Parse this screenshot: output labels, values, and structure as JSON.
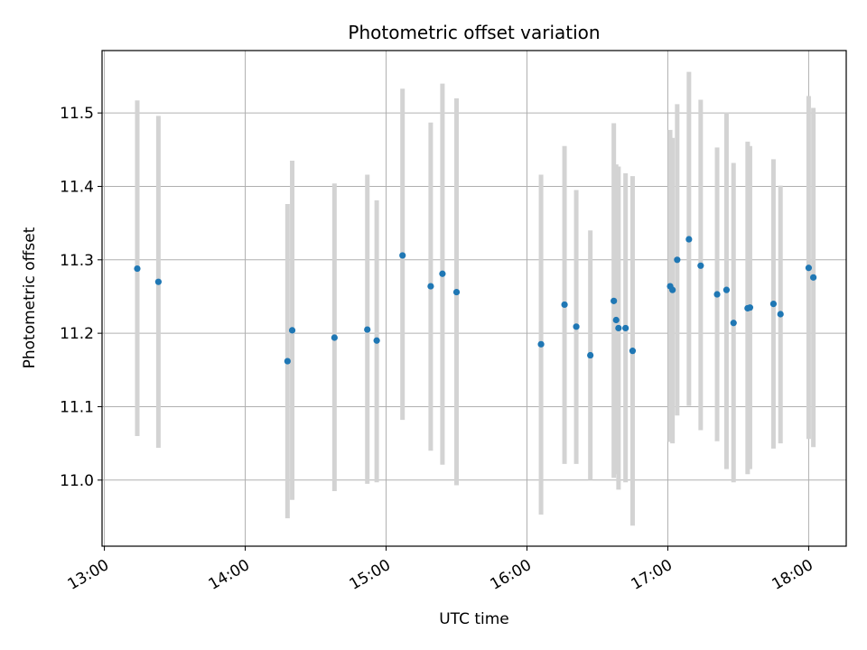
{
  "chart_data": {
    "type": "scatter",
    "title": "Photometric offset variation",
    "xlabel": "UTC time",
    "ylabel": "Photometric offset",
    "x_ticks": [
      "13:00",
      "14:00",
      "15:00",
      "16:00",
      "17:00",
      "18:00"
    ],
    "y_ticks": [
      "11.0",
      "11.1",
      "11.2",
      "11.3",
      "11.4",
      "11.5"
    ],
    "xlim": [
      "12:59",
      "18:16"
    ],
    "ylim": [
      10.91,
      11.585
    ],
    "grid": true,
    "colors": {
      "point": "#1f77b4",
      "errorbar": "#d3d3d3",
      "grid": "#b0b0b0"
    },
    "points": [
      {
        "x": "13:14",
        "y": 11.288,
        "ylow": 11.06,
        "yhigh": 11.517
      },
      {
        "x": "13:23",
        "y": 11.27,
        "ylow": 11.044,
        "yhigh": 11.496
      },
      {
        "x": "14:18",
        "y": 11.162,
        "ylow": 10.948,
        "yhigh": 11.376
      },
      {
        "x": "14:20",
        "y": 11.204,
        "ylow": 10.973,
        "yhigh": 11.435
      },
      {
        "x": "14:38",
        "y": 11.194,
        "ylow": 10.985,
        "yhigh": 11.404
      },
      {
        "x": "14:52",
        "y": 11.205,
        "ylow": 10.995,
        "yhigh": 11.416
      },
      {
        "x": "14:56",
        "y": 11.19,
        "ylow": 10.997,
        "yhigh": 11.381
      },
      {
        "x": "15:07",
        "y": 11.306,
        "ylow": 11.082,
        "yhigh": 11.533
      },
      {
        "x": "15:19",
        "y": 11.264,
        "ylow": 11.04,
        "yhigh": 11.487
      },
      {
        "x": "15:24",
        "y": 11.281,
        "ylow": 11.021,
        "yhigh": 11.54
      },
      {
        "x": "15:30",
        "y": 11.256,
        "ylow": 10.993,
        "yhigh": 11.52
      },
      {
        "x": "16:06",
        "y": 11.185,
        "ylow": 10.953,
        "yhigh": 11.416
      },
      {
        "x": "16:16",
        "y": 11.239,
        "ylow": 11.022,
        "yhigh": 11.455
      },
      {
        "x": "16:21",
        "y": 11.209,
        "ylow": 11.022,
        "yhigh": 11.395
      },
      {
        "x": "16:27",
        "y": 11.17,
        "ylow": 11.0,
        "yhigh": 11.34
      },
      {
        "x": "16:37",
        "y": 11.244,
        "ylow": 11.003,
        "yhigh": 11.486
      },
      {
        "x": "16:38",
        "y": 11.218,
        "ylow": 11.008,
        "yhigh": 11.43
      },
      {
        "x": "16:39",
        "y": 11.207,
        "ylow": 10.987,
        "yhigh": 11.427
      },
      {
        "x": "16:42",
        "y": 11.207,
        "ylow": 10.997,
        "yhigh": 11.418
      },
      {
        "x": "16:45",
        "y": 11.176,
        "ylow": 10.938,
        "yhigh": 11.414
      },
      {
        "x": "17:01",
        "y": 11.264,
        "ylow": 11.052,
        "yhigh": 11.477
      },
      {
        "x": "17:02",
        "y": 11.259,
        "ylow": 11.05,
        "yhigh": 11.466
      },
      {
        "x": "17:04",
        "y": 11.3,
        "ylow": 11.088,
        "yhigh": 11.512
      },
      {
        "x": "17:09",
        "y": 11.328,
        "ylow": 11.101,
        "yhigh": 11.556
      },
      {
        "x": "17:14",
        "y": 11.292,
        "ylow": 11.068,
        "yhigh": 11.518
      },
      {
        "x": "17:21",
        "y": 11.253,
        "ylow": 11.053,
        "yhigh": 11.453
      },
      {
        "x": "17:25",
        "y": 11.259,
        "ylow": 11.015,
        "yhigh": 11.501
      },
      {
        "x": "17:28",
        "y": 11.214,
        "ylow": 10.997,
        "yhigh": 11.432
      },
      {
        "x": "17:34",
        "y": 11.234,
        "ylow": 11.008,
        "yhigh": 11.461
      },
      {
        "x": "17:35",
        "y": 11.235,
        "ylow": 11.015,
        "yhigh": 11.455
      },
      {
        "x": "17:45",
        "y": 11.24,
        "ylow": 11.043,
        "yhigh": 11.437
      },
      {
        "x": "17:48",
        "y": 11.226,
        "ylow": 11.05,
        "yhigh": 11.401
      },
      {
        "x": "18:00",
        "y": 11.289,
        "ylow": 11.056,
        "yhigh": 11.523
      },
      {
        "x": "18:02",
        "y": 11.276,
        "ylow": 11.045,
        "yhigh": 11.507
      }
    ]
  }
}
